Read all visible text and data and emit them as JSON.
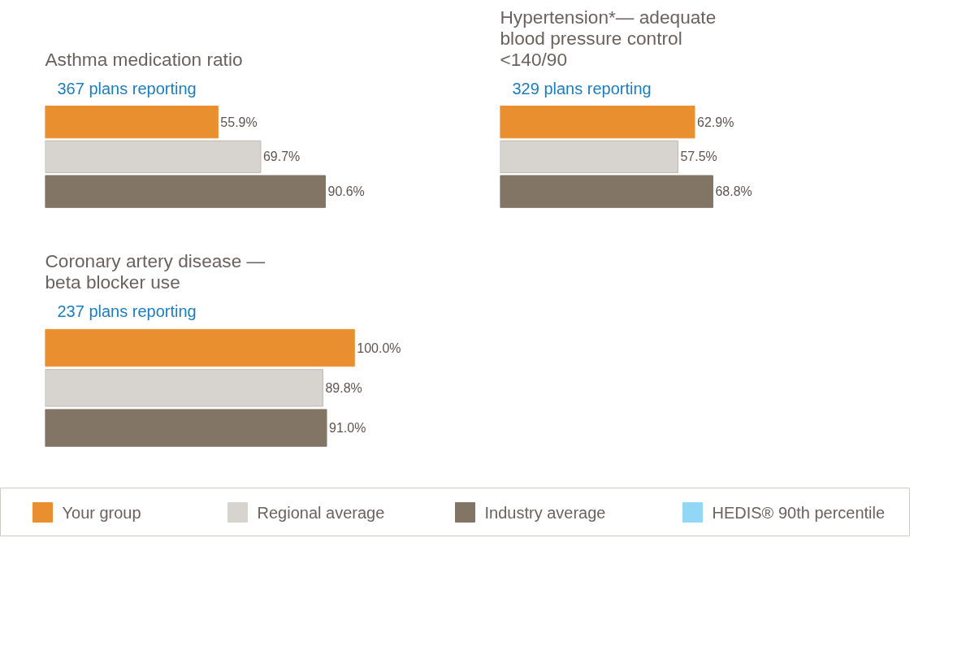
{
  "chart_data": [
    {
      "type": "bar",
      "orientation": "horizontal",
      "title": "Asthma medication ratio",
      "subtitle": "367  plans reporting",
      "categories": [
        null
      ],
      "series": [
        {
          "color": "#ea8f2f",
          "values": [
            55.9
          ],
          "value_labels": [
            "55.9%"
          ]
        },
        {
          "color": "#d7d3ce",
          "values": [
            69.7
          ],
          "value_labels": [
            "69.7%"
          ]
        },
        {
          "color": "#827566",
          "values": [
            90.6
          ],
          "value_labels": [
            "90.6%"
          ]
        }
      ]
    },
    {
      "type": "bar",
      "orientation": "horizontal",
      "title": "Hypertension*— adequate blood pressure control <140/90",
      "subtitle": "329  plans reporting",
      "categories": [
        null
      ],
      "series": [
        {
          "color": "#ea8f2f",
          "values": [
            62.9
          ],
          "value_labels": [
            "62.9%"
          ]
        },
        {
          "color": "#d7d3ce",
          "values": [
            57.5
          ],
          "value_labels": [
            "57.5%"
          ]
        },
        {
          "color": "#827566",
          "values": [
            68.8
          ],
          "value_labels": [
            "68.8%"
          ]
        }
      ]
    },
    {
      "type": "bar",
      "orientation": "horizontal",
      "title": "Coronary artery disease — beta blocker use",
      "subtitle": "237  plans reporting",
      "categories": [
        null
      ],
      "legend": "bottom",
      "series": [
        {
          "name": "Your group",
          "color": "#ea8f2f",
          "values": [
            100.0
          ],
          "value_labels": [
            "100.0%"
          ]
        },
        {
          "name": "Regional average",
          "color": "#d7d3ce",
          "values": [
            89.8
          ],
          "value_labels": [
            "89.8%"
          ]
        },
        {
          "name": "Industry average",
          "color": "#827566",
          "values": [
            91.0
          ],
          "value_labels": [
            "91.0%"
          ]
        },
        {
          "name": "HEDIS® 90th percentile",
          "color": "#92d7f5",
          "values": [
            null
          ]
        }
      ]
    }
  ]
}
